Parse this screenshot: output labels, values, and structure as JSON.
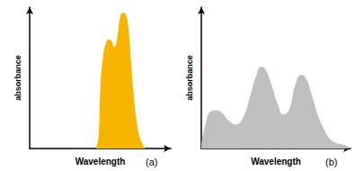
{
  "chart_data": [
    {
      "type": "area",
      "x_label": "Wavelength",
      "y_label": "absorbance",
      "annotation": "(a)",
      "color": "#f7b500",
      "xlim": [
        0,
        100
      ],
      "ylim": [
        0,
        100
      ],
      "tick_labels": false,
      "grid": false,
      "x": [
        47,
        49,
        50,
        52,
        54,
        56,
        58,
        60,
        62,
        64,
        66,
        68,
        70,
        72,
        74,
        76,
        78,
        80,
        82
      ],
      "values": [
        0,
        10,
        40,
        65,
        74,
        77,
        76,
        72,
        78,
        92,
        96,
        95,
        85,
        60,
        35,
        18,
        8,
        3,
        0
      ]
    },
    {
      "type": "area",
      "x_label": "Wavelength",
      "y_label": "absorbance",
      "annotation": "(b)",
      "color": "#bfbfbf",
      "xlim": [
        0,
        100
      ],
      "ylim": [
        0,
        100
      ],
      "tick_labels": false,
      "grid": false,
      "x": [
        0,
        3,
        6,
        10,
        14,
        18,
        23,
        28,
        33,
        37,
        40,
        43,
        47,
        51,
        55,
        59,
        63,
        67,
        70,
        74,
        78,
        82,
        86,
        90,
        94,
        98,
        100
      ],
      "values": [
        3,
        18,
        26,
        27,
        25,
        20,
        17,
        22,
        38,
        52,
        58,
        56,
        45,
        32,
        24,
        28,
        45,
        52,
        50,
        38,
        24,
        14,
        7,
        4,
        3,
        1,
        0
      ]
    }
  ]
}
